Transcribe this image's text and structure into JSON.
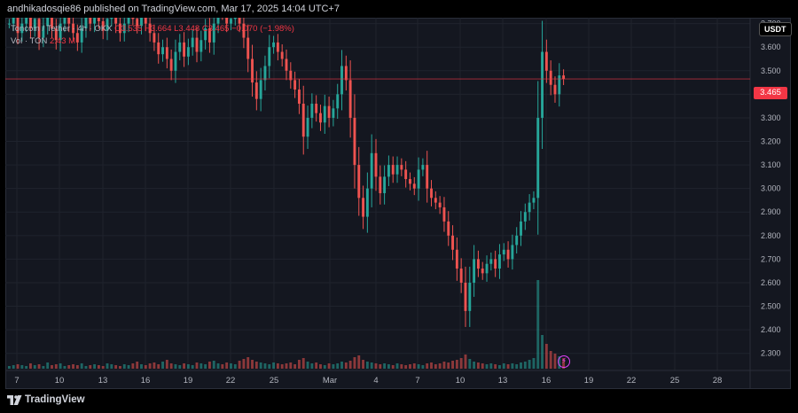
{
  "header": {
    "published_line": "andhikadosqie86 published on TradingView.com, Mar 17, 2025 14:04 UTC+7"
  },
  "legend": {
    "symbol": "Toncoin / Tether · 4h · OKX",
    "ohlc": "O3.535 H3.664 L3.448 C3.465 −0.070 (−1.98%)",
    "volume_label": "Vol · TON",
    "volume_value": "2.43 M"
  },
  "price_axis": {
    "unit": "USDT",
    "current_price": "3.465",
    "ticks": [
      "3.700",
      "3.600",
      "3.500",
      "3.400",
      "3.300",
      "3.200",
      "3.100",
      "3.000",
      "2.900",
      "2.800",
      "2.700",
      "2.600",
      "2.500",
      "2.400",
      "2.300"
    ]
  },
  "time_axis": {
    "ticks": [
      "7",
      "10",
      "13",
      "16",
      "19",
      "22",
      "25",
      "Mar",
      "4",
      "7",
      "10",
      "13",
      "16",
      "19",
      "22",
      "25",
      "28"
    ]
  },
  "footer": {
    "brand": "TradingView"
  },
  "colors": {
    "up": "#26a69a",
    "down": "#ef5350",
    "background": "#141720",
    "price_line": "#f23645",
    "alert": "#e040fb"
  },
  "icons": {
    "alert": "lightning-alert-icon",
    "logo": "tradingview-logo-icon"
  },
  "chart_data": {
    "type": "candlestick",
    "ylim": [
      2.25,
      3.74
    ],
    "last_price": 3.465,
    "closes": [
      3.7,
      3.73,
      3.66,
      3.7,
      3.74,
      3.68,
      3.72,
      3.64,
      3.69,
      3.73,
      3.68,
      3.63,
      3.7,
      3.74,
      3.7,
      3.66,
      3.62,
      3.68,
      3.73,
      3.7,
      3.74,
      3.71,
      3.67,
      3.72,
      3.75,
      3.7,
      3.66,
      3.7,
      3.74,
      3.72,
      3.69,
      3.73,
      3.7,
      3.66,
      3.62,
      3.57,
      3.6,
      3.55,
      3.5,
      3.58,
      3.62,
      3.56,
      3.6,
      3.64,
      3.58,
      3.63,
      3.68,
      3.62,
      3.7,
      3.75,
      3.74,
      3.7,
      3.72,
      3.74,
      3.7,
      3.64,
      3.55,
      3.45,
      3.38,
      3.46,
      3.52,
      3.6,
      3.62,
      3.58,
      3.55,
      3.5,
      3.46,
      3.42,
      3.36,
      3.22,
      3.3,
      3.36,
      3.32,
      3.28,
      3.35,
      3.3,
      3.34,
      3.4,
      3.52,
      3.46,
      3.3,
      3.1,
      2.96,
      2.88,
      3.0,
      3.15,
      3.05,
      2.98,
      3.05,
      3.1,
      3.06,
      3.1,
      3.08,
      3.04,
      3.02,
      3.0,
      3.08,
      3.1,
      3.0,
      2.96,
      2.94,
      2.92,
      2.86,
      2.8,
      2.74,
      2.66,
      2.6,
      2.48,
      2.6,
      2.7,
      2.66,
      2.64,
      2.68,
      2.7,
      2.66,
      2.72,
      2.74,
      2.7,
      2.76,
      2.8,
      2.86,
      2.9,
      2.94,
      2.96,
      3.3,
      3.58,
      3.5,
      3.44,
      3.4,
      3.48,
      3.465
    ],
    "volume": [
      0.03,
      0.04,
      0.05,
      0.04,
      0.03,
      0.06,
      0.04,
      0.05,
      0.03,
      0.07,
      0.04,
      0.05,
      0.06,
      0.03,
      0.04,
      0.05,
      0.04,
      0.06,
      0.03,
      0.04,
      0.05,
      0.04,
      0.03,
      0.06,
      0.05,
      0.04,
      0.03,
      0.05,
      0.04,
      0.06,
      0.08,
      0.05,
      0.04,
      0.06,
      0.07,
      0.05,
      0.08,
      0.1,
      0.06,
      0.05,
      0.04,
      0.06,
      0.05,
      0.04,
      0.07,
      0.06,
      0.05,
      0.08,
      0.09,
      0.06,
      0.05,
      0.07,
      0.06,
      0.05,
      0.09,
      0.11,
      0.13,
      0.1,
      0.08,
      0.07,
      0.06,
      0.05,
      0.07,
      0.06,
      0.05,
      0.06,
      0.07,
      0.05,
      0.1,
      0.12,
      0.08,
      0.06,
      0.07,
      0.05,
      0.04,
      0.06,
      0.05,
      0.06,
      0.08,
      0.07,
      0.09,
      0.13,
      0.15,
      0.1,
      0.08,
      0.07,
      0.06,
      0.05,
      0.06,
      0.05,
      0.04,
      0.06,
      0.05,
      0.04,
      0.05,
      0.06,
      0.05,
      0.04,
      0.06,
      0.07,
      0.05,
      0.06,
      0.08,
      0.07,
      0.09,
      0.1,
      0.12,
      0.16,
      0.11,
      0.08,
      0.07,
      0.06,
      0.05,
      0.06,
      0.05,
      0.04,
      0.06,
      0.05,
      0.06,
      0.05,
      0.07,
      0.08,
      0.1,
      0.12,
      1.0,
      0.38,
      0.28,
      0.2,
      0.17,
      0.14,
      0.12
    ]
  }
}
